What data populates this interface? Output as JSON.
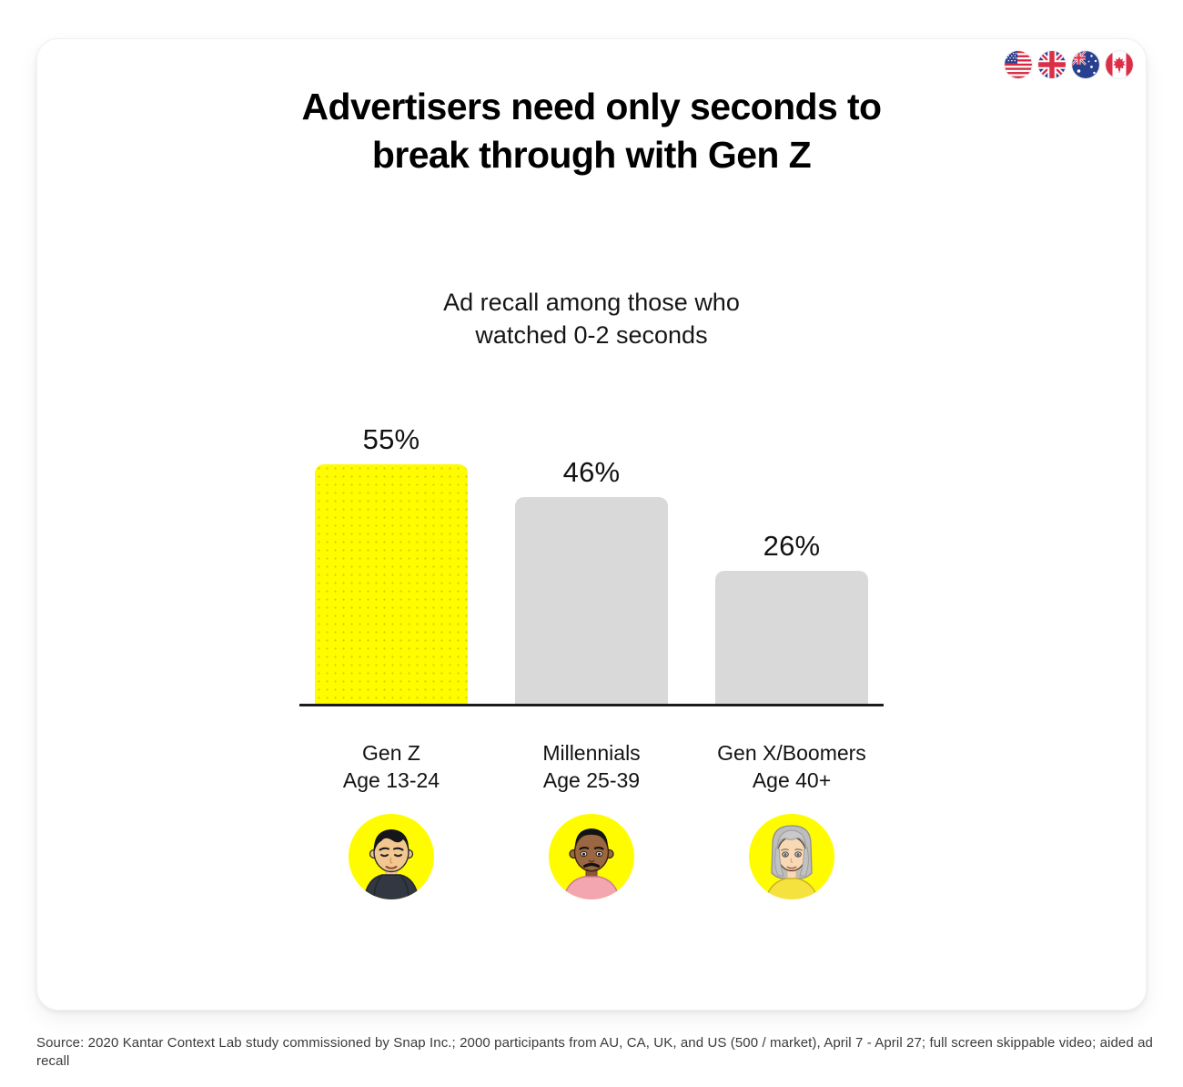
{
  "header": {
    "title_line1": "Advertisers need only seconds to",
    "title_line2": "break through with Gen Z"
  },
  "flags": [
    {
      "id": "flag-us",
      "name": "United States"
    },
    {
      "id": "flag-uk",
      "name": "United Kingdom"
    },
    {
      "id": "flag-au",
      "name": "Australia"
    },
    {
      "id": "flag-ca",
      "name": "Canada"
    }
  ],
  "chart_data": {
    "type": "bar",
    "title": "Ad recall among those who watched 0-2 seconds",
    "title_line1": "Ad recall among those who",
    "title_line2": "watched 0-2 seconds",
    "categories": [
      {
        "label": "Gen Z",
        "sublabel": "Age 13-24",
        "value": 55,
        "value_label": "55%",
        "highlight": true,
        "avatar": "avatar-gen-z"
      },
      {
        "label": "Millennials",
        "sublabel": "Age 25-39",
        "value": 46,
        "value_label": "46%",
        "highlight": false,
        "avatar": "avatar-millennials"
      },
      {
        "label": "Gen X/Boomers",
        "sublabel": "Age 40+",
        "value": 26,
        "value_label": "26%",
        "highlight": false,
        "avatar": "avatar-gen-x-boomers"
      }
    ],
    "values": [
      55,
      46,
      26
    ],
    "unit": "%",
    "ylim": [
      0,
      60
    ],
    "grid": false,
    "legend": "none",
    "colors": {
      "highlight": "#FFFC00",
      "default": "#D9D9D9",
      "axis": "#1C1C1C"
    }
  },
  "footer": {
    "source": "Source: 2020 Kantar Context Lab study commissioned by Snap Inc.; 2000 participants from AU, CA, UK, and US (500 / market), April 7 - April 27; full screen skippable video; aided ad recall"
  }
}
